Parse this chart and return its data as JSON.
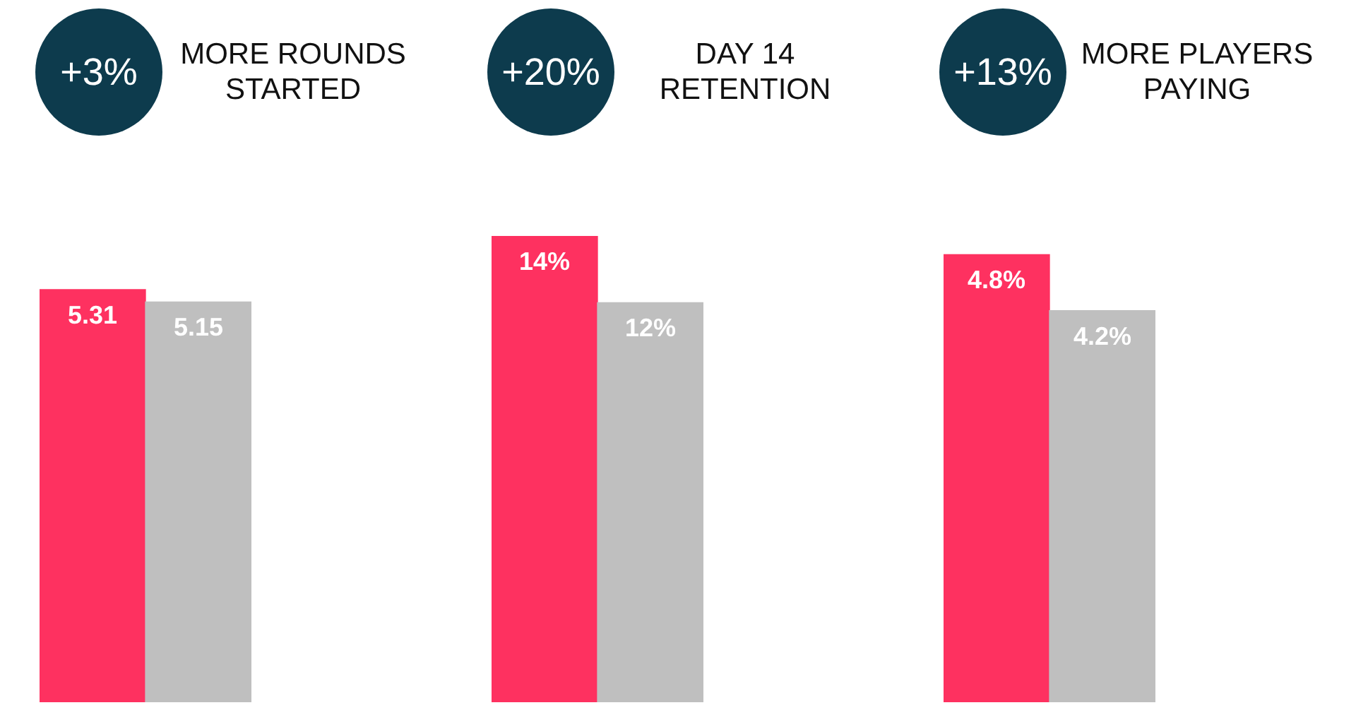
{
  "chart_data": [
    {
      "type": "bar",
      "title": "MORE ROUNDS STARTED",
      "annotations": [
        "+3%"
      ],
      "categories": [
        null,
        null
      ],
      "values": [
        5.31,
        5.15
      ],
      "colors": [
        "#fe3160",
        "#bfbfbf"
      ],
      "data_labels": true
    },
    {
      "type": "bar",
      "title": "DAY 14 RETENTION",
      "annotations": [
        "+20%"
      ],
      "categories": [
        null,
        null
      ],
      "values": [
        14,
        12
      ],
      "value_labels": [
        "14%",
        "12%"
      ],
      "colors": [
        "#fe3160",
        "#bfbfbf"
      ]
    },
    {
      "type": "bar",
      "title": "MORE PLAYERS PAYING",
      "annotations": [
        "+13%"
      ],
      "categories": [
        null,
        null
      ],
      "values": [
        4.8,
        4.2
      ],
      "value_labels": [
        "4.8%",
        "4.2%"
      ],
      "colors": [
        "#fe3160",
        "#bfbfbf"
      ]
    }
  ]
}
